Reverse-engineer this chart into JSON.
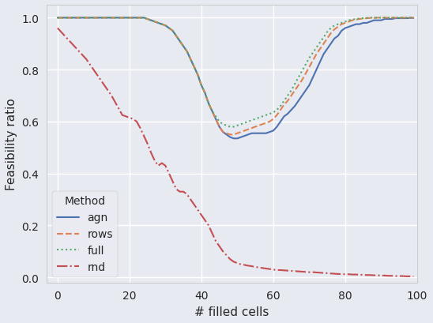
{
  "title": "",
  "xlabel": "# filled cells",
  "ylabel": "Feasibility ratio",
  "xlim": [
    -3,
    100
  ],
  "ylim": [
    -0.02,
    1.05
  ],
  "legend_title": "Method",
  "background_color": "#e8eaf2",
  "grid_color": "white",
  "series": {
    "agn": {
      "color": "#4c72b0",
      "linestyle": "solid",
      "linewidth": 1.5,
      "x": [
        0,
        1,
        2,
        3,
        4,
        5,
        6,
        7,
        8,
        9,
        10,
        11,
        12,
        13,
        14,
        15,
        16,
        17,
        18,
        19,
        20,
        21,
        22,
        23,
        24,
        25,
        26,
        27,
        28,
        29,
        30,
        31,
        32,
        33,
        34,
        35,
        36,
        37,
        38,
        39,
        40,
        41,
        42,
        43,
        44,
        45,
        46,
        47,
        48,
        49,
        50,
        51,
        52,
        53,
        54,
        55,
        56,
        57,
        58,
        59,
        60,
        61,
        62,
        63,
        64,
        65,
        66,
        67,
        68,
        69,
        70,
        71,
        72,
        73,
        74,
        75,
        76,
        77,
        78,
        79,
        80,
        81,
        82,
        83,
        84,
        85,
        86,
        87,
        88,
        89,
        90,
        91,
        92,
        93,
        94,
        95,
        96,
        97,
        98,
        99
      ],
      "y": [
        1.0,
        1.0,
        1.0,
        1.0,
        1.0,
        1.0,
        1.0,
        1.0,
        1.0,
        1.0,
        1.0,
        1.0,
        1.0,
        1.0,
        1.0,
        1.0,
        1.0,
        1.0,
        1.0,
        1.0,
        1.0,
        1.0,
        1.0,
        1.0,
        1.0,
        0.995,
        0.99,
        0.985,
        0.98,
        0.975,
        0.97,
        0.96,
        0.95,
        0.93,
        0.91,
        0.89,
        0.87,
        0.84,
        0.81,
        0.78,
        0.74,
        0.71,
        0.67,
        0.64,
        0.61,
        0.58,
        0.56,
        0.55,
        0.54,
        0.535,
        0.535,
        0.54,
        0.545,
        0.55,
        0.555,
        0.555,
        0.555,
        0.555,
        0.555,
        0.56,
        0.565,
        0.58,
        0.6,
        0.62,
        0.63,
        0.645,
        0.66,
        0.68,
        0.7,
        0.72,
        0.74,
        0.77,
        0.8,
        0.83,
        0.86,
        0.88,
        0.9,
        0.92,
        0.93,
        0.95,
        0.96,
        0.965,
        0.97,
        0.975,
        0.975,
        0.98,
        0.98,
        0.985,
        0.99,
        0.99,
        0.99,
        0.995,
        0.995,
        0.995,
        0.998,
        0.998,
        0.998,
        0.998,
        0.999,
        0.999
      ]
    },
    "rows": {
      "color": "#dd8452",
      "linestyle": "dashed",
      "linewidth": 1.5,
      "x": [
        0,
        1,
        2,
        3,
        4,
        5,
        6,
        7,
        8,
        9,
        10,
        11,
        12,
        13,
        14,
        15,
        16,
        17,
        18,
        19,
        20,
        21,
        22,
        23,
        24,
        25,
        26,
        27,
        28,
        29,
        30,
        31,
        32,
        33,
        34,
        35,
        36,
        37,
        38,
        39,
        40,
        41,
        42,
        43,
        44,
        45,
        46,
        47,
        48,
        49,
        50,
        51,
        52,
        53,
        54,
        55,
        56,
        57,
        58,
        59,
        60,
        61,
        62,
        63,
        64,
        65,
        66,
        67,
        68,
        69,
        70,
        71,
        72,
        73,
        74,
        75,
        76,
        77,
        78,
        79,
        80,
        81,
        82,
        83,
        84,
        85,
        86,
        87,
        88,
        89,
        90,
        91,
        92,
        93,
        94,
        95,
        96,
        97,
        98,
        99
      ],
      "y": [
        1.0,
        1.0,
        1.0,
        1.0,
        1.0,
        1.0,
        1.0,
        1.0,
        1.0,
        1.0,
        1.0,
        1.0,
        1.0,
        1.0,
        1.0,
        1.0,
        1.0,
        1.0,
        1.0,
        1.0,
        1.0,
        1.0,
        1.0,
        1.0,
        1.0,
        0.995,
        0.99,
        0.985,
        0.98,
        0.975,
        0.97,
        0.96,
        0.95,
        0.93,
        0.91,
        0.89,
        0.87,
        0.84,
        0.81,
        0.78,
        0.74,
        0.71,
        0.67,
        0.64,
        0.61,
        0.58,
        0.56,
        0.555,
        0.55,
        0.55,
        0.555,
        0.56,
        0.565,
        0.57,
        0.575,
        0.58,
        0.585,
        0.59,
        0.595,
        0.6,
        0.61,
        0.625,
        0.645,
        0.665,
        0.68,
        0.7,
        0.72,
        0.74,
        0.76,
        0.785,
        0.81,
        0.835,
        0.86,
        0.88,
        0.9,
        0.92,
        0.94,
        0.955,
        0.965,
        0.975,
        0.98,
        0.985,
        0.99,
        0.993,
        0.995,
        0.997,
        0.998,
        0.999,
        0.999,
        1.0,
        1.0,
        1.0,
        1.0,
        1.0,
        1.0,
        1.0,
        1.0,
        1.0,
        1.0,
        1.0
      ]
    },
    "full": {
      "color": "#55a868",
      "linestyle": "dotted",
      "linewidth": 1.5,
      "x": [
        0,
        1,
        2,
        3,
        4,
        5,
        6,
        7,
        8,
        9,
        10,
        11,
        12,
        13,
        14,
        15,
        16,
        17,
        18,
        19,
        20,
        21,
        22,
        23,
        24,
        25,
        26,
        27,
        28,
        29,
        30,
        31,
        32,
        33,
        34,
        35,
        36,
        37,
        38,
        39,
        40,
        41,
        42,
        43,
        44,
        45,
        46,
        47,
        48,
        49,
        50,
        51,
        52,
        53,
        54,
        55,
        56,
        57,
        58,
        59,
        60,
        61,
        62,
        63,
        64,
        65,
        66,
        67,
        68,
        69,
        70,
        71,
        72,
        73,
        74,
        75,
        76,
        77,
        78,
        79,
        80,
        81,
        82,
        83,
        84,
        85,
        86,
        87,
        88,
        89,
        90,
        91,
        92,
        93,
        94,
        95,
        96,
        97,
        98,
        99
      ],
      "y": [
        1.0,
        1.0,
        1.0,
        1.0,
        1.0,
        1.0,
        1.0,
        1.0,
        1.0,
        1.0,
        1.0,
        1.0,
        1.0,
        1.0,
        1.0,
        1.0,
        1.0,
        1.0,
        1.0,
        1.0,
        1.0,
        1.0,
        1.0,
        1.0,
        1.0,
        0.995,
        0.99,
        0.985,
        0.98,
        0.975,
        0.97,
        0.96,
        0.95,
        0.93,
        0.91,
        0.89,
        0.87,
        0.84,
        0.81,
        0.78,
        0.74,
        0.71,
        0.67,
        0.64,
        0.62,
        0.6,
        0.59,
        0.585,
        0.58,
        0.58,
        0.585,
        0.59,
        0.595,
        0.6,
        0.605,
        0.61,
        0.615,
        0.62,
        0.625,
        0.63,
        0.635,
        0.645,
        0.66,
        0.68,
        0.7,
        0.72,
        0.745,
        0.77,
        0.795,
        0.82,
        0.845,
        0.865,
        0.885,
        0.905,
        0.925,
        0.945,
        0.96,
        0.97,
        0.975,
        0.98,
        0.985,
        0.99,
        0.993,
        0.995,
        0.997,
        0.998,
        0.999,
        1.0,
        1.0,
        1.0,
        1.0,
        1.0,
        1.0,
        1.0,
        1.0,
        1.0,
        1.0,
        1.0,
        1.0,
        1.0
      ]
    },
    "rnd": {
      "color": "#c44e52",
      "linestyle": "dashdot",
      "linewidth": 1.5,
      "x": [
        0,
        1,
        2,
        3,
        4,
        5,
        6,
        7,
        8,
        9,
        10,
        11,
        12,
        13,
        14,
        15,
        16,
        17,
        18,
        19,
        20,
        21,
        22,
        23,
        24,
        25,
        26,
        27,
        28,
        29,
        30,
        31,
        32,
        33,
        34,
        35,
        36,
        37,
        38,
        39,
        40,
        41,
        42,
        43,
        44,
        45,
        46,
        47,
        48,
        49,
        50,
        51,
        52,
        53,
        54,
        55,
        56,
        57,
        58,
        59,
        60,
        61,
        62,
        63,
        64,
        65,
        66,
        67,
        68,
        69,
        70,
        71,
        72,
        73,
        74,
        75,
        76,
        77,
        78,
        79,
        80,
        81,
        82,
        83,
        84,
        85,
        86,
        87,
        88,
        89,
        90,
        91,
        92,
        93,
        94,
        95,
        96,
        97,
        98,
        99
      ],
      "y": [
        0.96,
        0.945,
        0.93,
        0.915,
        0.9,
        0.885,
        0.87,
        0.855,
        0.84,
        0.82,
        0.8,
        0.78,
        0.76,
        0.74,
        0.72,
        0.7,
        0.675,
        0.65,
        0.625,
        0.62,
        0.615,
        0.61,
        0.6,
        0.575,
        0.545,
        0.515,
        0.48,
        0.45,
        0.43,
        0.44,
        0.43,
        0.4,
        0.37,
        0.34,
        0.33,
        0.33,
        0.32,
        0.3,
        0.28,
        0.26,
        0.24,
        0.22,
        0.2,
        0.17,
        0.14,
        0.12,
        0.1,
        0.085,
        0.07,
        0.06,
        0.055,
        0.05,
        0.048,
        0.045,
        0.043,
        0.04,
        0.038,
        0.036,
        0.034,
        0.032,
        0.03,
        0.028,
        0.028,
        0.027,
        0.026,
        0.025,
        0.024,
        0.023,
        0.022,
        0.021,
        0.02,
        0.02,
        0.019,
        0.018,
        0.017,
        0.016,
        0.015,
        0.014,
        0.013,
        0.013,
        0.012,
        0.012,
        0.011,
        0.011,
        0.01,
        0.01,
        0.009,
        0.009,
        0.008,
        0.008,
        0.007,
        0.007,
        0.006,
        0.006,
        0.005,
        0.005,
        0.005,
        0.004,
        0.004,
        0.004
      ]
    }
  }
}
